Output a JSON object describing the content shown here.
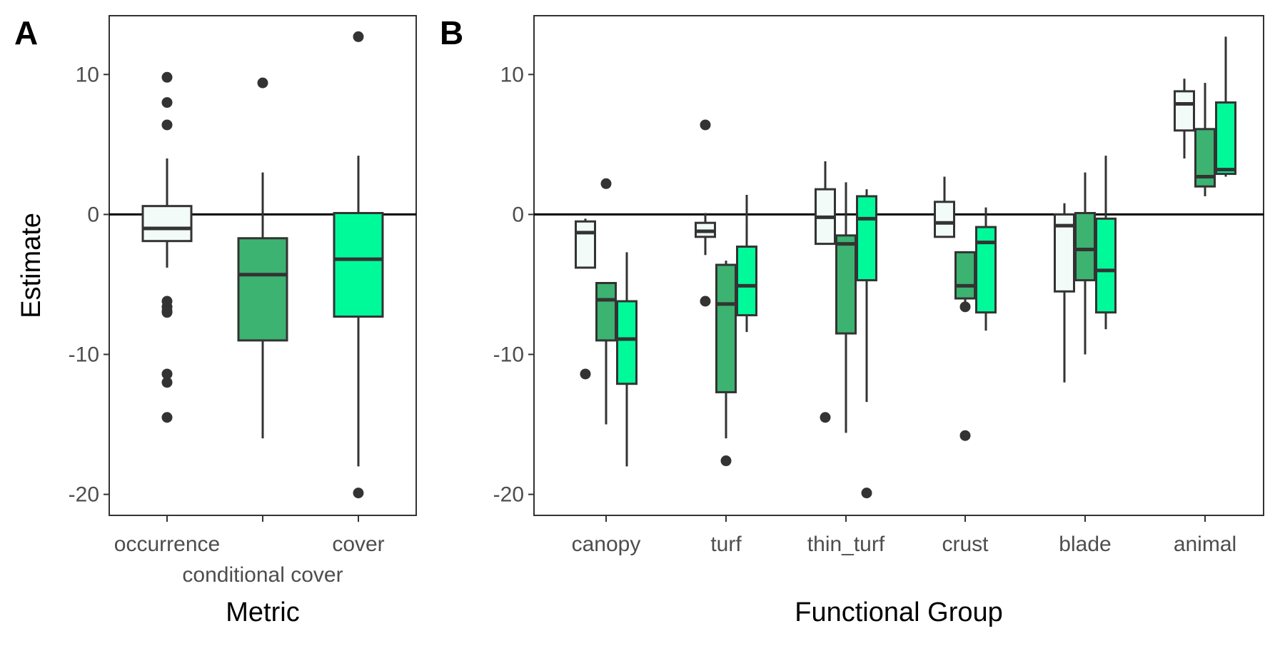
{
  "chart_data": [
    {
      "type": "box",
      "panel_label": "A",
      "xlabel": "Metric",
      "ylabel": "Estimate",
      "ylim": [
        -21.5,
        14.2
      ],
      "y_ticks": [
        10,
        0,
        -10,
        -20
      ],
      "y_tick_labels": [
        "10",
        "0",
        "-10",
        "-20"
      ],
      "reference_line": 0,
      "categories": [
        "occurrence",
        "conditional cover",
        "cover"
      ],
      "boxes": [
        {
          "category": "occurrence",
          "color": "#f2fbf8",
          "q1": -1.9,
          "median": -1.0,
          "q3": 0.6,
          "whisker_low": -3.8,
          "whisker_high": 4.0,
          "outliers": [
            9.8,
            8.0,
            6.4,
            -6.2,
            -6.6,
            -6.9,
            -7.0,
            -11.4,
            -12.0,
            -14.5
          ]
        },
        {
          "category": "conditional cover",
          "color": "#3cb371",
          "q1": -9.0,
          "median": -4.3,
          "q3": -1.7,
          "whisker_low": -16.0,
          "whisker_high": 3.0,
          "outliers": [
            9.4
          ]
        },
        {
          "category": "cover",
          "color": "#00fa9a",
          "q1": -7.3,
          "median": -3.2,
          "q3": 0.1,
          "whisker_low": -18.0,
          "whisker_high": 4.2,
          "outliers": [
            12.7,
            -19.9
          ]
        }
      ]
    },
    {
      "type": "box",
      "panel_label": "B",
      "xlabel": "Functional Group",
      "ylabel": "",
      "ylim": [
        -21.5,
        14.2
      ],
      "y_ticks": [
        10,
        0,
        -10,
        -20
      ],
      "y_tick_labels": [
        "10",
        "0",
        "-10",
        "-20"
      ],
      "reference_line": 0,
      "categories": [
        "canopy",
        "turf",
        "thin_turf",
        "crust",
        "blade",
        "animal"
      ],
      "series_colors": [
        "#f2fbf8",
        "#3cb371",
        "#00fa9a"
      ],
      "groups": [
        {
          "category": "canopy",
          "boxes": [
            {
              "q1": -3.8,
              "median": -1.3,
              "q3": -0.5,
              "whisker_low": -3.8,
              "whisker_high": -0.3,
              "outliers": [
                -11.4
              ]
            },
            {
              "q1": -9.0,
              "median": -6.1,
              "q3": -4.9,
              "whisker_low": -15.0,
              "whisker_high": -4.9,
              "outliers": [
                2.2
              ]
            },
            {
              "q1": -12.1,
              "median": -8.9,
              "q3": -6.2,
              "whisker_low": -18.0,
              "whisker_high": -2.7,
              "outliers": []
            }
          ]
        },
        {
          "category": "turf",
          "boxes": [
            {
              "q1": -1.6,
              "median": -1.2,
              "q3": -0.6,
              "whisker_low": -2.9,
              "whisker_high": 0.1,
              "outliers": [
                6.4,
                -6.2
              ]
            },
            {
              "q1": -12.7,
              "median": -6.4,
              "q3": -3.6,
              "whisker_low": -16.0,
              "whisker_high": -3.3,
              "outliers": [
                -17.6
              ]
            },
            {
              "q1": -7.2,
              "median": -5.1,
              "q3": -2.3,
              "whisker_low": -8.4,
              "whisker_high": 1.4,
              "outliers": []
            }
          ]
        },
        {
          "category": "thin_turf",
          "boxes": [
            {
              "q1": -2.1,
              "median": -0.2,
              "q3": 1.8,
              "whisker_low": -2.1,
              "whisker_high": 3.8,
              "outliers": [
                -14.5
              ]
            },
            {
              "q1": -8.5,
              "median": -2.1,
              "q3": -1.5,
              "whisker_low": -15.6,
              "whisker_high": 2.3,
              "outliers": []
            },
            {
              "q1": -4.7,
              "median": -0.3,
              "q3": 1.3,
              "whisker_low": -13.4,
              "whisker_high": 1.8,
              "outliers": [
                -19.9
              ]
            }
          ]
        },
        {
          "category": "crust",
          "boxes": [
            {
              "q1": -1.6,
              "median": -0.6,
              "q3": 0.9,
              "whisker_low": -1.6,
              "whisker_high": 2.7,
              "outliers": []
            },
            {
              "q1": -6.0,
              "median": -5.1,
              "q3": -2.7,
              "whisker_low": -6.5,
              "whisker_high": -2.7,
              "outliers": [
                -6.6,
                -15.8
              ]
            },
            {
              "q1": -7.0,
              "median": -2.0,
              "q3": -0.9,
              "whisker_low": -8.3,
              "whisker_high": 0.5,
              "outliers": []
            }
          ]
        },
        {
          "category": "blade",
          "boxes": [
            {
              "q1": -5.5,
              "median": -0.8,
              "q3": 0.0,
              "whisker_low": -12.0,
              "whisker_high": 0.8,
              "outliers": []
            },
            {
              "q1": -4.7,
              "median": -2.5,
              "q3": 0.1,
              "whisker_low": -10.0,
              "whisker_high": 3.0,
              "outliers": []
            },
            {
              "q1": -7.0,
              "median": -4.0,
              "q3": -0.3,
              "whisker_low": -8.2,
              "whisker_high": 4.2,
              "outliers": []
            }
          ]
        },
        {
          "category": "animal",
          "boxes": [
            {
              "q1": 6.0,
              "median": 7.9,
              "q3": 8.8,
              "whisker_low": 4.0,
              "whisker_high": 9.7,
              "outliers": []
            },
            {
              "q1": 2.0,
              "median": 2.7,
              "q3": 6.1,
              "whisker_low": 1.3,
              "whisker_high": 9.4,
              "outliers": []
            },
            {
              "q1": 2.9,
              "median": 3.2,
              "q3": 8.0,
              "whisker_low": 2.7,
              "whisker_high": 12.7,
              "outliers": []
            }
          ]
        }
      ]
    }
  ]
}
